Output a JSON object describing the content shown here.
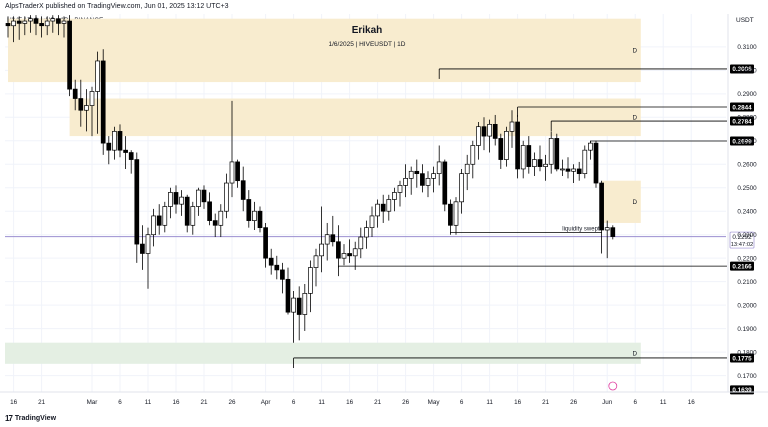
{
  "header": {
    "published": "AlpsTraderX published on TradingView.com, Jun 01, 2025 13:12 UTC+3"
  },
  "symbol": {
    "line": "HIVE / TetherUS · 1D · BINANCE",
    "currency": "USDT"
  },
  "watermark": {
    "author": "Erikah",
    "subtitle": "1/6/2025 | HIVEUSDT | 1D"
  },
  "footer": {
    "brand": "TradingView"
  },
  "colors": {
    "zone_supply": "#f8eccf",
    "zone_demand": "#e4efe3",
    "price_line": "#9b8fd1",
    "bull_candle": "#ffffff",
    "bear_candle": "#000000"
  },
  "chart_data": {
    "type": "candlestick",
    "ylim": [
      0.163,
      0.324
    ],
    "y_ticks": [
      "0.3100",
      "0.3000",
      "0.2900",
      "0.2800",
      "0.2700",
      "0.2600",
      "0.2500",
      "0.2400",
      "0.2300",
      "0.2200",
      "0.2100",
      "0.2000",
      "0.1900",
      "0.1800",
      "0.1700"
    ],
    "y_tick_values": [
      0.31,
      0.3,
      0.29,
      0.28,
      0.27,
      0.26,
      0.25,
      0.24,
      0.23,
      0.22,
      0.21,
      0.2,
      0.19,
      0.18,
      0.17
    ],
    "x_ticks": [
      "16",
      "21",
      "Mar",
      "6",
      "11",
      "16",
      "21",
      "26",
      "Apr",
      "6",
      "11",
      "16",
      "21",
      "26",
      "May",
      "6",
      "11",
      "16",
      "21",
      "26",
      "Jun",
      "6",
      "11",
      "16"
    ],
    "x_tick_days": [
      -14,
      -9,
      0,
      5,
      10,
      15,
      20,
      25,
      31,
      36,
      41,
      46,
      51,
      56,
      61,
      66,
      71,
      76,
      81,
      86,
      92,
      97,
      102,
      107
    ],
    "x_axis_note": "x values are days offset from Mar 1, 2025",
    "candles": [
      {
        "d": -15,
        "o": 0.32,
        "h": 0.323,
        "l": 0.314,
        "c": 0.319
      },
      {
        "d": -14,
        "o": 0.319,
        "h": 0.323,
        "l": 0.312,
        "c": 0.321
      },
      {
        "d": -13,
        "o": 0.321,
        "h": 0.323,
        "l": 0.313,
        "c": 0.32
      },
      {
        "d": -12,
        "o": 0.32,
        "h": 0.323,
        "l": 0.315,
        "c": 0.321
      },
      {
        "d": -11,
        "o": 0.321,
        "h": 0.3235,
        "l": 0.316,
        "c": 0.322
      },
      {
        "d": -10,
        "o": 0.322,
        "h": 0.3235,
        "l": 0.315,
        "c": 0.32
      },
      {
        "d": -9,
        "o": 0.32,
        "h": 0.323,
        "l": 0.314,
        "c": 0.319
      },
      {
        "d": -8,
        "o": 0.319,
        "h": 0.323,
        "l": 0.315,
        "c": 0.321
      },
      {
        "d": -7,
        "o": 0.321,
        "h": 0.3235,
        "l": 0.316,
        "c": 0.322
      },
      {
        "d": -6,
        "o": 0.322,
        "h": 0.3235,
        "l": 0.315,
        "c": 0.32
      },
      {
        "d": -5,
        "o": 0.32,
        "h": 0.323,
        "l": 0.314,
        "c": 0.321
      },
      {
        "d": -4,
        "o": 0.321,
        "h": 0.3235,
        "l": 0.289,
        "c": 0.292
      },
      {
        "d": -3,
        "o": 0.292,
        "h": 0.296,
        "l": 0.283,
        "c": 0.288
      },
      {
        "d": -2,
        "o": 0.288,
        "h": 0.296,
        "l": 0.276,
        "c": 0.283
      },
      {
        "d": -1,
        "o": 0.283,
        "h": 0.292,
        "l": 0.274,
        "c": 0.285
      },
      {
        "d": 0,
        "o": 0.285,
        "h": 0.293,
        "l": 0.272,
        "c": 0.291
      },
      {
        "d": 1,
        "o": 0.291,
        "h": 0.308,
        "l": 0.273,
        "c": 0.304
      },
      {
        "d": 2,
        "o": 0.304,
        "h": 0.309,
        "l": 0.264,
        "c": 0.269
      },
      {
        "d": 3,
        "o": 0.269,
        "h": 0.272,
        "l": 0.26,
        "c": 0.266
      },
      {
        "d": 4,
        "o": 0.266,
        "h": 0.276,
        "l": 0.262,
        "c": 0.274
      },
      {
        "d": 5,
        "o": 0.274,
        "h": 0.277,
        "l": 0.263,
        "c": 0.266
      },
      {
        "d": 6,
        "o": 0.266,
        "h": 0.272,
        "l": 0.258,
        "c": 0.265
      },
      {
        "d": 7,
        "o": 0.265,
        "h": 0.266,
        "l": 0.256,
        "c": 0.262
      },
      {
        "d": 8,
        "o": 0.262,
        "h": 0.265,
        "l": 0.218,
        "c": 0.226
      },
      {
        "d": 9,
        "o": 0.226,
        "h": 0.234,
        "l": 0.215,
        "c": 0.222
      },
      {
        "d": 10,
        "o": 0.222,
        "h": 0.233,
        "l": 0.207,
        "c": 0.23
      },
      {
        "d": 11,
        "o": 0.23,
        "h": 0.241,
        "l": 0.225,
        "c": 0.238
      },
      {
        "d": 12,
        "o": 0.238,
        "h": 0.243,
        "l": 0.23,
        "c": 0.234
      },
      {
        "d": 13,
        "o": 0.234,
        "h": 0.244,
        "l": 0.231,
        "c": 0.242
      },
      {
        "d": 14,
        "o": 0.242,
        "h": 0.25,
        "l": 0.237,
        "c": 0.248
      },
      {
        "d": 15,
        "o": 0.248,
        "h": 0.251,
        "l": 0.239,
        "c": 0.243
      },
      {
        "d": 16,
        "o": 0.243,
        "h": 0.249,
        "l": 0.238,
        "c": 0.246
      },
      {
        "d": 17,
        "o": 0.246,
        "h": 0.247,
        "l": 0.231,
        "c": 0.234
      },
      {
        "d": 18,
        "o": 0.234,
        "h": 0.244,
        "l": 0.23,
        "c": 0.242
      },
      {
        "d": 19,
        "o": 0.242,
        "h": 0.25,
        "l": 0.238,
        "c": 0.249
      },
      {
        "d": 20,
        "o": 0.249,
        "h": 0.251,
        "l": 0.241,
        "c": 0.244
      },
      {
        "d": 21,
        "o": 0.244,
        "h": 0.248,
        "l": 0.234,
        "c": 0.236
      },
      {
        "d": 22,
        "o": 0.236,
        "h": 0.239,
        "l": 0.229,
        "c": 0.234
      },
      {
        "d": 23,
        "o": 0.234,
        "h": 0.243,
        "l": 0.229,
        "c": 0.24
      },
      {
        "d": 24,
        "o": 0.24,
        "h": 0.256,
        "l": 0.237,
        "c": 0.252
      },
      {
        "d": 25,
        "o": 0.252,
        "h": 0.287,
        "l": 0.246,
        "c": 0.261
      },
      {
        "d": 26,
        "o": 0.261,
        "h": 0.262,
        "l": 0.25,
        "c": 0.253
      },
      {
        "d": 27,
        "o": 0.253,
        "h": 0.259,
        "l": 0.24,
        "c": 0.245
      },
      {
        "d": 28,
        "o": 0.245,
        "h": 0.249,
        "l": 0.233,
        "c": 0.236
      },
      {
        "d": 29,
        "o": 0.236,
        "h": 0.244,
        "l": 0.232,
        "c": 0.24
      },
      {
        "d": 30,
        "o": 0.24,
        "h": 0.242,
        "l": 0.231,
        "c": 0.233
      },
      {
        "d": 31,
        "o": 0.233,
        "h": 0.235,
        "l": 0.216,
        "c": 0.22
      },
      {
        "d": 32,
        "o": 0.22,
        "h": 0.224,
        "l": 0.213,
        "c": 0.217
      },
      {
        "d": 33,
        "o": 0.217,
        "h": 0.221,
        "l": 0.211,
        "c": 0.215
      },
      {
        "d": 34,
        "o": 0.215,
        "h": 0.218,
        "l": 0.205,
        "c": 0.211
      },
      {
        "d": 35,
        "o": 0.211,
        "h": 0.216,
        "l": 0.196,
        "c": 0.197
      },
      {
        "d": 36,
        "o": 0.197,
        "h": 0.206,
        "l": 0.184,
        "c": 0.203
      },
      {
        "d": 37,
        "o": 0.203,
        "h": 0.208,
        "l": 0.185,
        "c": 0.196
      },
      {
        "d": 38,
        "o": 0.196,
        "h": 0.209,
        "l": 0.189,
        "c": 0.205
      },
      {
        "d": 39,
        "o": 0.205,
        "h": 0.219,
        "l": 0.197,
        "c": 0.216
      },
      {
        "d": 40,
        "o": 0.216,
        "h": 0.224,
        "l": 0.208,
        "c": 0.221
      },
      {
        "d": 41,
        "o": 0.221,
        "h": 0.242,
        "l": 0.214,
        "c": 0.226
      },
      {
        "d": 42,
        "o": 0.226,
        "h": 0.235,
        "l": 0.219,
        "c": 0.23
      },
      {
        "d": 43,
        "o": 0.23,
        "h": 0.238,
        "l": 0.225,
        "c": 0.227
      },
      {
        "d": 44,
        "o": 0.227,
        "h": 0.234,
        "l": 0.216,
        "c": 0.22
      },
      {
        "d": 45,
        "o": 0.22,
        "h": 0.226,
        "l": 0.217,
        "c": 0.222
      },
      {
        "d": 46,
        "o": 0.222,
        "h": 0.228,
        "l": 0.218,
        "c": 0.221
      },
      {
        "d": 47,
        "o": 0.221,
        "h": 0.227,
        "l": 0.215,
        "c": 0.224
      },
      {
        "d": 48,
        "o": 0.224,
        "h": 0.233,
        "l": 0.22,
        "c": 0.229
      },
      {
        "d": 49,
        "o": 0.229,
        "h": 0.236,
        "l": 0.224,
        "c": 0.233
      },
      {
        "d": 50,
        "o": 0.233,
        "h": 0.242,
        "l": 0.229,
        "c": 0.238
      },
      {
        "d": 51,
        "o": 0.238,
        "h": 0.245,
        "l": 0.233,
        "c": 0.243
      },
      {
        "d": 52,
        "o": 0.243,
        "h": 0.247,
        "l": 0.235,
        "c": 0.24
      },
      {
        "d": 53,
        "o": 0.24,
        "h": 0.247,
        "l": 0.236,
        "c": 0.245
      },
      {
        "d": 54,
        "o": 0.245,
        "h": 0.25,
        "l": 0.24,
        "c": 0.248
      },
      {
        "d": 55,
        "o": 0.248,
        "h": 0.253,
        "l": 0.242,
        "c": 0.251
      },
      {
        "d": 56,
        "o": 0.251,
        "h": 0.26,
        "l": 0.246,
        "c": 0.254
      },
      {
        "d": 57,
        "o": 0.254,
        "h": 0.259,
        "l": 0.247,
        "c": 0.257
      },
      {
        "d": 58,
        "o": 0.257,
        "h": 0.262,
        "l": 0.25,
        "c": 0.256
      },
      {
        "d": 59,
        "o": 0.256,
        "h": 0.26,
        "l": 0.248,
        "c": 0.251
      },
      {
        "d": 60,
        "o": 0.251,
        "h": 0.257,
        "l": 0.246,
        "c": 0.254
      },
      {
        "d": 61,
        "o": 0.254,
        "h": 0.259,
        "l": 0.248,
        "c": 0.256
      },
      {
        "d": 62,
        "o": 0.256,
        "h": 0.268,
        "l": 0.251,
        "c": 0.261
      },
      {
        "d": 63,
        "o": 0.261,
        "h": 0.262,
        "l": 0.24,
        "c": 0.243
      },
      {
        "d": 64,
        "o": 0.243,
        "h": 0.245,
        "l": 0.23,
        "c": 0.234
      },
      {
        "d": 65,
        "o": 0.234,
        "h": 0.246,
        "l": 0.23,
        "c": 0.244
      },
      {
        "d": 66,
        "o": 0.244,
        "h": 0.258,
        "l": 0.239,
        "c": 0.256
      },
      {
        "d": 67,
        "o": 0.256,
        "h": 0.264,
        "l": 0.249,
        "c": 0.26
      },
      {
        "d": 68,
        "o": 0.26,
        "h": 0.27,
        "l": 0.254,
        "c": 0.268
      },
      {
        "d": 69,
        "o": 0.268,
        "h": 0.278,
        "l": 0.262,
        "c": 0.276
      },
      {
        "d": 70,
        "o": 0.276,
        "h": 0.28,
        "l": 0.266,
        "c": 0.272
      },
      {
        "d": 71,
        "o": 0.272,
        "h": 0.279,
        "l": 0.265,
        "c": 0.277
      },
      {
        "d": 72,
        "o": 0.277,
        "h": 0.281,
        "l": 0.268,
        "c": 0.271
      },
      {
        "d": 73,
        "o": 0.271,
        "h": 0.273,
        "l": 0.258,
        "c": 0.262
      },
      {
        "d": 74,
        "o": 0.262,
        "h": 0.276,
        "l": 0.259,
        "c": 0.274
      },
      {
        "d": 75,
        "o": 0.274,
        "h": 0.283,
        "l": 0.267,
        "c": 0.278
      },
      {
        "d": 76,
        "o": 0.278,
        "h": 0.281,
        "l": 0.254,
        "c": 0.258
      },
      {
        "d": 77,
        "o": 0.258,
        "h": 0.27,
        "l": 0.254,
        "c": 0.268
      },
      {
        "d": 78,
        "o": 0.268,
        "h": 0.272,
        "l": 0.256,
        "c": 0.259
      },
      {
        "d": 79,
        "o": 0.259,
        "h": 0.265,
        "l": 0.255,
        "c": 0.262
      },
      {
        "d": 80,
        "o": 0.262,
        "h": 0.268,
        "l": 0.257,
        "c": 0.259
      },
      {
        "d": 81,
        "o": 0.259,
        "h": 0.264,
        "l": 0.253,
        "c": 0.26
      },
      {
        "d": 82,
        "o": 0.26,
        "h": 0.274,
        "l": 0.256,
        "c": 0.271
      },
      {
        "d": 83,
        "o": 0.271,
        "h": 0.273,
        "l": 0.257,
        "c": 0.258
      },
      {
        "d": 84,
        "o": 0.258,
        "h": 0.262,
        "l": 0.255,
        "c": 0.258
      },
      {
        "d": 85,
        "o": 0.258,
        "h": 0.263,
        "l": 0.254,
        "c": 0.257
      },
      {
        "d": 86,
        "o": 0.257,
        "h": 0.26,
        "l": 0.252,
        "c": 0.258
      },
      {
        "d": 87,
        "o": 0.258,
        "h": 0.261,
        "l": 0.253,
        "c": 0.256
      },
      {
        "d": 88,
        "o": 0.256,
        "h": 0.268,
        "l": 0.254,
        "c": 0.266
      },
      {
        "d": 89,
        "o": 0.266,
        "h": 0.27,
        "l": 0.262,
        "c": 0.269
      },
      {
        "d": 90,
        "o": 0.269,
        "h": 0.27,
        "l": 0.25,
        "c": 0.252
      },
      {
        "d": 91,
        "o": 0.252,
        "h": 0.253,
        "l": 0.222,
        "c": 0.232
      },
      {
        "d": 92,
        "o": 0.232,
        "h": 0.236,
        "l": 0.22,
        "c": 0.233
      },
      {
        "d": 93,
        "o": 0.233,
        "h": 0.234,
        "l": 0.228,
        "c": 0.2292
      }
    ],
    "zones": [
      {
        "label": "D",
        "from_day": -15,
        "to_day": 98,
        "low": 0.295,
        "high": 0.322,
        "kind": "supply"
      },
      {
        "label": "D",
        "from_day": -4,
        "to_day": 98,
        "low": 0.272,
        "high": 0.288,
        "kind": "supply"
      },
      {
        "label": "D",
        "from_day": 91,
        "to_day": 98,
        "low": 0.235,
        "high": 0.253,
        "kind": "supply"
      },
      {
        "label": "D",
        "from_day": -32,
        "to_day": 98,
        "low": 0.175,
        "high": 0.184,
        "kind": "demand"
      }
    ],
    "levels": [
      {
        "price": 0.3006,
        "label": "0.3006",
        "from_day": 62
      },
      {
        "price": 0.2844,
        "label": "0.2844",
        "from_day": 76
      },
      {
        "price": 0.2784,
        "label": "0.2784",
        "from_day": 82
      },
      {
        "price": 0.2699,
        "label": "0.2699",
        "from_day": 89
      },
      {
        "price": 0.2166,
        "label": "0.2166",
        "from_day": 44
      },
      {
        "price": 0.1775,
        "label": "0.1775",
        "from_day": 36
      }
    ],
    "liquidity_line": {
      "price": 0.231,
      "from_day": 64,
      "to_day": 91,
      "label": "liquidity swept"
    },
    "current_price": {
      "price": 0.2292,
      "label": "0.2292",
      "countdown": "13:47:02"
    },
    "low_label": {
      "price": 0.1639,
      "label": "0.1639"
    }
  }
}
